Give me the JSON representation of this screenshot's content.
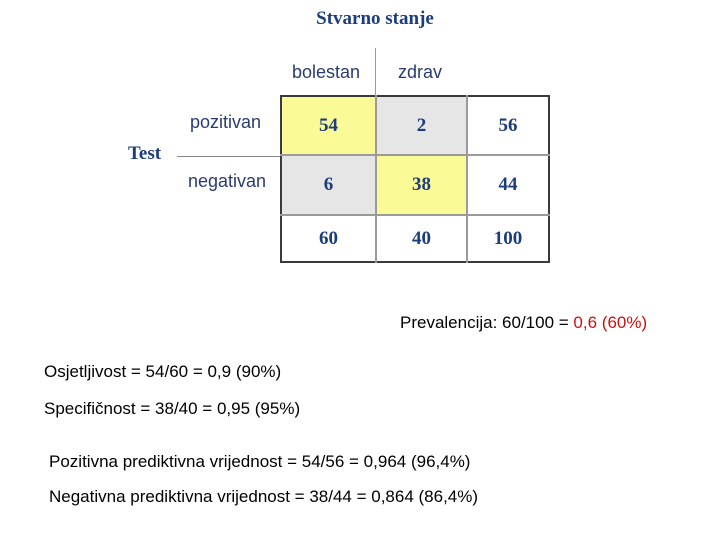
{
  "table": {
    "title": "Stvarno stanje",
    "col_headers": [
      "bolestan",
      "zdrav"
    ],
    "row_group_label": "Test",
    "row_labels": [
      "pozitivan",
      "negativan"
    ],
    "cells": [
      [
        "54",
        "2",
        "56"
      ],
      [
        "6",
        "38",
        "44"
      ],
      [
        "60",
        "40",
        "100"
      ]
    ]
  },
  "stats": {
    "prevalence_prefix": "Prevalencija: 60/100 = ",
    "prevalence_value": "0,6 (60%)",
    "sensitivity": "Osjetljivost = 54/60 = 0,9 (90%)",
    "specificity": "Specifičnost = 38/40 = 0,95 (95%)",
    "ppv": "Pozitivna prediktivna vrijednost = 54/56 = 0,964 (96,4%)",
    "npv": "Negativna prediktivna vrijednost = 38/44 = 0,864 (86,4%)"
  },
  "colors": {
    "highlight": "#fafa96",
    "cell_gray": "#e6e6e6",
    "label_blue": "#1c3d7c",
    "accent_red": "#cc1010"
  }
}
